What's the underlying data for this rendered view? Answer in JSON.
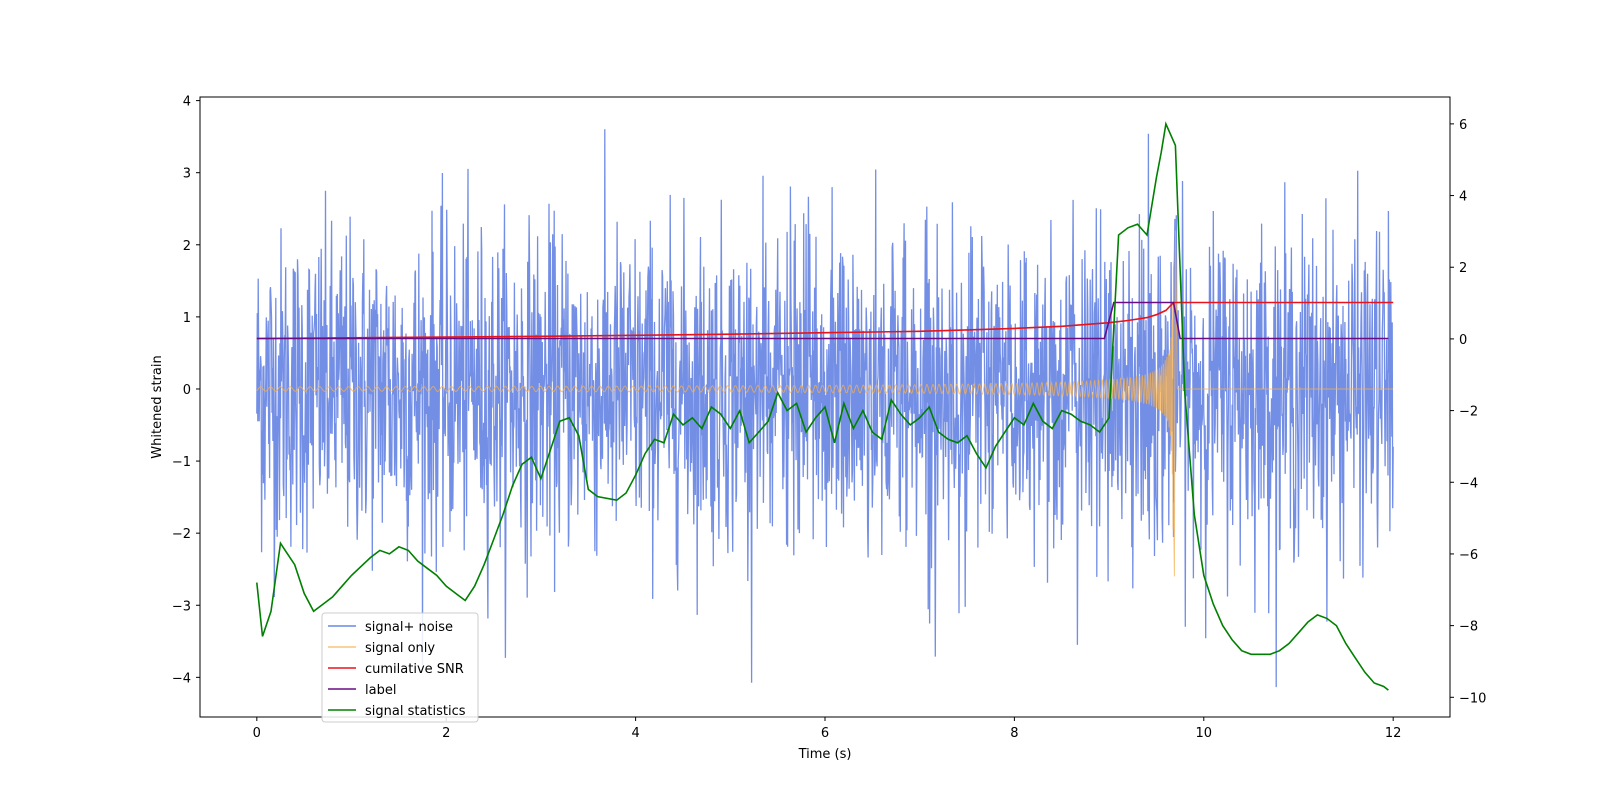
{
  "chart_data": {
    "type": "line",
    "title": "",
    "xlabel": "Time (s)",
    "ylabel": "Whitened strain",
    "y2label": "",
    "xlim": [
      -0.6,
      12.6
    ],
    "ylim": [
      -4.55,
      4.05
    ],
    "y2lim": [
      -10.55,
      6.75
    ],
    "xticks": [
      0,
      2,
      4,
      6,
      8,
      10,
      12
    ],
    "xtick_labels": [
      "0",
      "2",
      "4",
      "6",
      "8",
      "10",
      "12"
    ],
    "yticks": [
      -4,
      -3,
      -2,
      -1,
      0,
      1,
      2,
      3,
      4
    ],
    "ytick_labels": [
      "−4",
      "−3",
      "−2",
      "−1",
      "0",
      "1",
      "2",
      "3",
      "4"
    ],
    "y2ticks": [
      -10,
      -8,
      -6,
      -4,
      -2,
      0,
      2,
      4,
      6
    ],
    "y2tick_labels": [
      "−10",
      "−8",
      "−6",
      "−4",
      "−2",
      "0",
      "2",
      "4",
      "6"
    ],
    "legend_position": "lower-left",
    "grid": false,
    "series": [
      {
        "name": "signal+ noise",
        "axis": "left",
        "color": "#6b88e4",
        "kind": "noise",
        "t_start": 0,
        "t_end": 12,
        "band_upper": 2.4,
        "band_lower": -2.4,
        "peak_max": 3.65,
        "peak_min": -4.2
      },
      {
        "name": "signal only",
        "axis": "left",
        "color": "#f5b04f",
        "kind": "chirp",
        "t_start": 0,
        "t_merge": 9.68,
        "t_end": 12,
        "peak_max": 2.2,
        "peak_min": -2.6
      },
      {
        "name": "cumilative SNR",
        "axis": "left",
        "color": "#e8131b",
        "x": [
          0,
          1,
          2,
          3,
          4,
          5,
          6,
          7,
          7.5,
          8,
          8.5,
          9,
          9.2,
          9.4,
          9.5,
          9.6,
          9.68,
          9.7,
          10,
          11,
          12
        ],
        "values": [
          0.7,
          0.71,
          0.72,
          0.73,
          0.745,
          0.76,
          0.78,
          0.8,
          0.82,
          0.84,
          0.87,
          0.92,
          0.95,
          0.99,
          1.03,
          1.09,
          1.2,
          1.2,
          1.2,
          1.2,
          1.2
        ]
      },
      {
        "name": "label",
        "axis": "left",
        "color": "#6a0d83",
        "x": [
          0,
          8.95,
          9.05,
          9.68,
          9.75,
          11.95
        ],
        "values": [
          0.7,
          0.7,
          1.2,
          1.2,
          0.7,
          0.7
        ]
      },
      {
        "name": "signal statistics",
        "axis": "right",
        "color": "#008000",
        "x": [
          0,
          0.06,
          0.15,
          0.25,
          0.3,
          0.4,
          0.5,
          0.6,
          0.7,
          0.8,
          0.9,
          1.0,
          1.2,
          1.3,
          1.4,
          1.5,
          1.6,
          1.7,
          1.8,
          1.9,
          2.0,
          2.1,
          2.2,
          2.3,
          2.4,
          2.5,
          2.6,
          2.7,
          2.8,
          2.9,
          3.0,
          3.1,
          3.2,
          3.3,
          3.4,
          3.5,
          3.6,
          3.8,
          3.9,
          4.0,
          4.1,
          4.2,
          4.3,
          4.4,
          4.5,
          4.6,
          4.7,
          4.8,
          4.9,
          5.0,
          5.1,
          5.2,
          5.3,
          5.4,
          5.5,
          5.6,
          5.7,
          5.8,
          5.9,
          6.0,
          6.1,
          6.2,
          6.3,
          6.4,
          6.5,
          6.6,
          6.7,
          6.8,
          6.9,
          7.0,
          7.1,
          7.2,
          7.3,
          7.4,
          7.5,
          7.6,
          7.7,
          7.8,
          7.9,
          8.0,
          8.1,
          8.2,
          8.3,
          8.4,
          8.5,
          8.6,
          8.7,
          8.8,
          8.9,
          9.0,
          9.1,
          9.2,
          9.3,
          9.4,
          9.5,
          9.55,
          9.6,
          9.7,
          9.8,
          9.9,
          10.0,
          10.1,
          10.2,
          10.3,
          10.4,
          10.5,
          10.6,
          10.7,
          10.8,
          10.9,
          11.0,
          11.1,
          11.2,
          11.3,
          11.4,
          11.5,
          11.6,
          11.7,
          11.8,
          11.9,
          11.95
        ],
        "values": [
          -6.8,
          -8.3,
          -7.6,
          -5.7,
          -5.9,
          -6.3,
          -7.1,
          -7.6,
          -7.4,
          -7.2,
          -6.9,
          -6.6,
          -6.1,
          -5.9,
          -6.0,
          -5.8,
          -5.9,
          -6.2,
          -6.4,
          -6.6,
          -6.9,
          -7.1,
          -7.3,
          -6.9,
          -6.3,
          -5.6,
          -4.9,
          -4.1,
          -3.5,
          -3.3,
          -3.9,
          -3.1,
          -2.3,
          -2.2,
          -2.7,
          -4.2,
          -4.4,
          -4.5,
          -4.3,
          -3.8,
          -3.2,
          -2.8,
          -2.9,
          -2.1,
          -2.4,
          -2.2,
          -2.5,
          -1.9,
          -2.1,
          -2.5,
          -2.0,
          -2.9,
          -2.6,
          -2.3,
          -1.5,
          -2.0,
          -1.8,
          -2.6,
          -2.2,
          -1.9,
          -2.9,
          -1.8,
          -2.5,
          -2.0,
          -2.6,
          -2.8,
          -1.7,
          -2.1,
          -2.4,
          -2.2,
          -1.9,
          -2.6,
          -2.8,
          -2.9,
          -2.7,
          -3.2,
          -3.6,
          -3.0,
          -2.6,
          -2.2,
          -2.4,
          -1.8,
          -2.3,
          -2.5,
          -2.0,
          -2.1,
          -2.3,
          -2.4,
          -2.6,
          -2.2,
          2.9,
          3.1,
          3.2,
          2.9,
          4.5,
          5.2,
          6.0,
          5.4,
          -1.5,
          -4.9,
          -6.6,
          -7.4,
          -8.0,
          -8.4,
          -8.7,
          -8.8,
          -8.8,
          -8.8,
          -8.7,
          -8.5,
          -8.2,
          -7.9,
          -7.7,
          -7.8,
          -8.0,
          -8.5,
          -8.9,
          -9.3,
          -9.6,
          -9.7,
          -9.8
        ]
      }
    ]
  }
}
